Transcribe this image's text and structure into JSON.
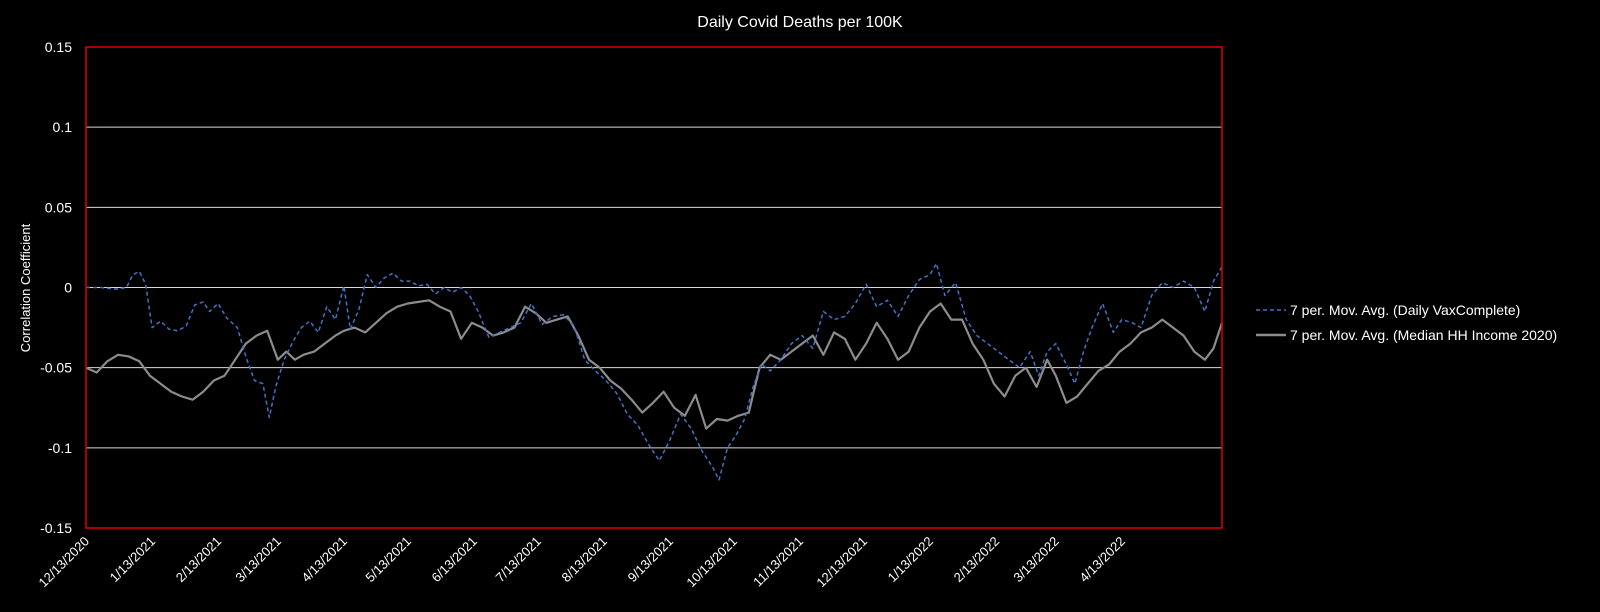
{
  "colors": {
    "background": "#000000",
    "plot_border": "#e00000",
    "gridline": "#d9d9d9",
    "text": "#ffffff",
    "series_vax": "#4472c4",
    "series_income": "#8c8c8c"
  },
  "chart_data": {
    "type": "line",
    "title": "Daily Covid Deaths per 100K",
    "xlabel": "",
    "ylabel": "Correlation Coefficient",
    "ylim": [
      -0.15,
      0.15
    ],
    "y_ticks": [
      {
        "value": 0.15,
        "label": "0.15"
      },
      {
        "value": 0.1,
        "label": "0.1"
      },
      {
        "value": 0.05,
        "label": "0.05"
      },
      {
        "value": 0,
        "label": "0"
      },
      {
        "value": -0.05,
        "label": "-0.05"
      },
      {
        "value": -0.1,
        "label": "-0.1"
      },
      {
        "value": -0.15,
        "label": "-0.15"
      }
    ],
    "xlim": [
      "12/13/2020",
      "5/30/2022"
    ],
    "x_ticks": [
      "12/13/2020",
      "1/13/2021",
      "2/13/2021",
      "3/13/2021",
      "4/13/2021",
      "5/13/2021",
      "6/13/2021",
      "7/13/2021",
      "8/13/2021",
      "9/13/2021",
      "10/13/2021",
      "11/13/2021",
      "12/13/2021",
      "1/13/2022",
      "2/13/2022",
      "3/13/2022",
      "4/13/2022"
    ],
    "grid": true,
    "legend_position": "right",
    "series": [
      {
        "name": "7 per. Mov. Avg. (Daily VaxComplete)",
        "style": "dashed",
        "points": [
          [
            "12/13/2020",
            0.0
          ],
          [
            "12/20/2020",
            0.0
          ],
          [
            "12/27/2020",
            -0.001
          ],
          [
            "1/1/2021",
            0.0
          ],
          [
            "1/4/2021",
            0.008
          ],
          [
            "1/7/2021",
            0.01
          ],
          [
            "1/10/2021",
            0.002
          ],
          [
            "1/13/2021",
            -0.025
          ],
          [
            "1/17/2021",
            -0.021
          ],
          [
            "1/21/2021",
            -0.026
          ],
          [
            "1/25/2021",
            -0.027
          ],
          [
            "1/29/2021",
            -0.024
          ],
          [
            "2/2/2021",
            -0.011
          ],
          [
            "2/6/2021",
            -0.009
          ],
          [
            "2/9/2021",
            -0.015
          ],
          [
            "2/13/2021",
            -0.01
          ],
          [
            "2/17/2021",
            -0.019
          ],
          [
            "2/22/2021",
            -0.025
          ],
          [
            "2/26/2021",
            -0.043
          ],
          [
            "3/2/2021",
            -0.058
          ],
          [
            "3/6/2021",
            -0.06
          ],
          [
            "3/9/2021",
            -0.081
          ],
          [
            "3/12/2021",
            -0.062
          ],
          [
            "3/16/2021",
            -0.045
          ],
          [
            "3/20/2021",
            -0.034
          ],
          [
            "3/24/2021",
            -0.025
          ],
          [
            "3/28/2021",
            -0.021
          ],
          [
            "4/1/2021",
            -0.028
          ],
          [
            "4/5/2021",
            -0.012
          ],
          [
            "4/9/2021",
            -0.02
          ],
          [
            "4/13/2021",
            0.001
          ],
          [
            "4/16/2021",
            -0.026
          ],
          [
            "4/20/2021",
            -0.014
          ],
          [
            "4/24/2021",
            0.008
          ],
          [
            "4/28/2021",
            0.0
          ],
          [
            "5/2/2021",
            0.006
          ],
          [
            "5/6/2021",
            0.009
          ],
          [
            "5/10/2021",
            0.004
          ],
          [
            "5/14/2021",
            0.004
          ],
          [
            "5/18/2021",
            0.001
          ],
          [
            "5/22/2021",
            0.002
          ],
          [
            "5/26/2021",
            -0.004
          ],
          [
            "5/30/2021",
            0.0
          ],
          [
            "6/3/2021",
            -0.003
          ],
          [
            "6/7/2021",
            0.0
          ],
          [
            "6/11/2021",
            -0.005
          ],
          [
            "6/15/2021",
            -0.015
          ],
          [
            "6/20/2021",
            -0.031
          ],
          [
            "6/25/2021",
            -0.028
          ],
          [
            "6/30/2021",
            -0.025
          ],
          [
            "7/5/2021",
            -0.022
          ],
          [
            "7/10/2021",
            -0.01
          ],
          [
            "7/15/2021",
            -0.023
          ],
          [
            "7/20/2021",
            -0.018
          ],
          [
            "7/25/2021",
            -0.017
          ],
          [
            "7/30/2021",
            -0.024
          ],
          [
            "8/4/2021",
            -0.045
          ],
          [
            "8/9/2021",
            -0.052
          ],
          [
            "8/14/2021",
            -0.058
          ],
          [
            "8/19/2021",
            -0.066
          ],
          [
            "8/24/2021",
            -0.079
          ],
          [
            "8/29/2021",
            -0.086
          ],
          [
            "9/3/2021",
            -0.098
          ],
          [
            "9/8/2021",
            -0.108
          ],
          [
            "9/13/2021",
            -0.095
          ],
          [
            "9/18/2021",
            -0.079
          ],
          [
            "9/23/2021",
            -0.088
          ],
          [
            "9/28/2021",
            -0.102
          ],
          [
            "10/3/2021",
            -0.112
          ],
          [
            "10/6/2021",
            -0.12
          ],
          [
            "10/10/2021",
            -0.1
          ],
          [
            "10/14/2021",
            -0.092
          ],
          [
            "10/18/2021",
            -0.082
          ],
          [
            "10/22/2021",
            -0.062
          ],
          [
            "10/26/2021",
            -0.048
          ],
          [
            "10/30/2021",
            -0.052
          ],
          [
            "11/4/2021",
            -0.045
          ],
          [
            "11/9/2021",
            -0.035
          ],
          [
            "11/14/2021",
            -0.03
          ],
          [
            "11/19/2021",
            -0.038
          ],
          [
            "11/24/2021",
            -0.015
          ],
          [
            "11/29/2021",
            -0.02
          ],
          [
            "12/4/2021",
            -0.018
          ],
          [
            "12/9/2021",
            -0.01
          ],
          [
            "12/14/2021",
            0.002
          ],
          [
            "12/19/2021",
            -0.012
          ],
          [
            "12/24/2021",
            -0.008
          ],
          [
            "12/29/2021",
            -0.018
          ],
          [
            "1/3/2022",
            -0.005
          ],
          [
            "1/8/2022",
            0.005
          ],
          [
            "1/13/2022",
            0.008
          ],
          [
            "1/16/2022",
            0.015
          ],
          [
            "1/20/2022",
            -0.005
          ],
          [
            "1/25/2022",
            0.003
          ],
          [
            "1/30/2022",
            -0.02
          ],
          [
            "2/4/2022",
            -0.03
          ],
          [
            "2/9/2022",
            -0.035
          ],
          [
            "2/14/2022",
            -0.04
          ],
          [
            "2/19/2022",
            -0.045
          ],
          [
            "2/24/2022",
            -0.05
          ],
          [
            "3/1/2022",
            -0.04
          ],
          [
            "3/5/2022",
            -0.055
          ],
          [
            "3/9/2022",
            -0.04
          ],
          [
            "3/13/2022",
            -0.035
          ],
          [
            "3/18/2022",
            -0.048
          ],
          [
            "3/22/2022",
            -0.06
          ],
          [
            "3/26/2022",
            -0.04
          ],
          [
            "3/30/2022",
            -0.025
          ],
          [
            "4/4/2022",
            -0.01
          ],
          [
            "4/9/2022",
            -0.028
          ],
          [
            "4/13/2022",
            -0.02
          ],
          [
            "4/18/2022",
            -0.022
          ],
          [
            "4/22/2022",
            -0.025
          ],
          [
            "4/27/2022",
            -0.005
          ],
          [
            "5/2/2022",
            0.003
          ],
          [
            "5/7/2022",
            0.0
          ],
          [
            "5/12/2022",
            0.004
          ],
          [
            "5/17/2022",
            0.0
          ],
          [
            "5/22/2022",
            -0.015
          ],
          [
            "5/26/2022",
            0.004
          ],
          [
            "5/30/2022",
            0.013
          ]
        ]
      },
      {
        "name": "7 per. Mov. Avg. (Median HH Income 2020)",
        "style": "solid",
        "points": [
          [
            "12/13/2020",
            -0.05
          ],
          [
            "12/18/2020",
            -0.053
          ],
          [
            "12/23/2020",
            -0.046
          ],
          [
            "12/28/2020",
            -0.042
          ],
          [
            "1/2/2021",
            -0.043
          ],
          [
            "1/7/2021",
            -0.046
          ],
          [
            "1/12/2021",
            -0.055
          ],
          [
            "1/17/2021",
            -0.06
          ],
          [
            "1/22/2021",
            -0.065
          ],
          [
            "1/27/2021",
            -0.068
          ],
          [
            "2/1/2021",
            -0.07
          ],
          [
            "2/6/2021",
            -0.065
          ],
          [
            "2/11/2021",
            -0.058
          ],
          [
            "2/16/2021",
            -0.055
          ],
          [
            "2/21/2021",
            -0.045
          ],
          [
            "2/26/2021",
            -0.035
          ],
          [
            "3/3/2021",
            -0.03
          ],
          [
            "3/8/2021",
            -0.027
          ],
          [
            "3/13/2021",
            -0.045
          ],
          [
            "3/17/2021",
            -0.04
          ],
          [
            "3/21/2021",
            -0.045
          ],
          [
            "3/25/2021",
            -0.042
          ],
          [
            "3/30/2021",
            -0.04
          ],
          [
            "4/4/2021",
            -0.035
          ],
          [
            "4/9/2021",
            -0.03
          ],
          [
            "4/13/2021",
            -0.027
          ],
          [
            "4/18/2021",
            -0.025
          ],
          [
            "4/23/2021",
            -0.028
          ],
          [
            "4/28/2021",
            -0.022
          ],
          [
            "5/3/2021",
            -0.016
          ],
          [
            "5/8/2021",
            -0.012
          ],
          [
            "5/13/2021",
            -0.01
          ],
          [
            "5/18/2021",
            -0.009
          ],
          [
            "5/23/2021",
            -0.008
          ],
          [
            "5/28/2021",
            -0.012
          ],
          [
            "6/2/2021",
            -0.015
          ],
          [
            "6/7/2021",
            -0.032
          ],
          [
            "6/12/2021",
            -0.022
          ],
          [
            "6/17/2021",
            -0.025
          ],
          [
            "6/22/2021",
            -0.03
          ],
          [
            "6/27/2021",
            -0.028
          ],
          [
            "7/2/2021",
            -0.025
          ],
          [
            "7/7/2021",
            -0.012
          ],
          [
            "7/12/2021",
            -0.016
          ],
          [
            "7/17/2021",
            -0.022
          ],
          [
            "7/22/2021",
            -0.02
          ],
          [
            "7/27/2021",
            -0.018
          ],
          [
            "8/1/2021",
            -0.03
          ],
          [
            "8/6/2021",
            -0.045
          ],
          [
            "8/11/2021",
            -0.05
          ],
          [
            "8/16/2021",
            -0.058
          ],
          [
            "8/21/2021",
            -0.063
          ],
          [
            "8/26/2021",
            -0.07
          ],
          [
            "8/31/2021",
            -0.078
          ],
          [
            "9/5/2021",
            -0.072
          ],
          [
            "9/10/2021",
            -0.065
          ],
          [
            "9/15/2021",
            -0.075
          ],
          [
            "9/20/2021",
            -0.08
          ],
          [
            "9/25/2021",
            -0.067
          ],
          [
            "9/30/2021",
            -0.088
          ],
          [
            "10/5/2021",
            -0.082
          ],
          [
            "10/10/2021",
            -0.083
          ],
          [
            "10/15/2021",
            -0.08
          ],
          [
            "10/20/2021",
            -0.078
          ],
          [
            "10/25/2021",
            -0.05
          ],
          [
            "10/30/2021",
            -0.042
          ],
          [
            "11/4/2021",
            -0.045
          ],
          [
            "11/9/2021",
            -0.04
          ],
          [
            "11/14/2021",
            -0.035
          ],
          [
            "11/19/2021",
            -0.03
          ],
          [
            "11/24/2021",
            -0.042
          ],
          [
            "11/29/2021",
            -0.028
          ],
          [
            "12/4/2021",
            -0.032
          ],
          [
            "12/9/2021",
            -0.045
          ],
          [
            "12/14/2021",
            -0.035
          ],
          [
            "12/19/2021",
            -0.022
          ],
          [
            "12/24/2021",
            -0.032
          ],
          [
            "12/29/2021",
            -0.045
          ],
          [
            "1/3/2022",
            -0.04
          ],
          [
            "1/8/2022",
            -0.025
          ],
          [
            "1/13/2022",
            -0.015
          ],
          [
            "1/18/2022",
            -0.01
          ],
          [
            "1/23/2022",
            -0.02
          ],
          [
            "1/28/2022",
            -0.02
          ],
          [
            "2/2/2022",
            -0.035
          ],
          [
            "2/7/2022",
            -0.045
          ],
          [
            "2/12/2022",
            -0.06
          ],
          [
            "2/17/2022",
            -0.068
          ],
          [
            "2/22/2022",
            -0.055
          ],
          [
            "2/27/2022",
            -0.05
          ],
          [
            "3/4/2022",
            -0.062
          ],
          [
            "3/9/2022",
            -0.045
          ],
          [
            "3/13/2022",
            -0.055
          ],
          [
            "3/18/2022",
            -0.072
          ],
          [
            "3/23/2022",
            -0.068
          ],
          [
            "3/28/2022",
            -0.06
          ],
          [
            "4/2/2022",
            -0.052
          ],
          [
            "4/7/2022",
            -0.048
          ],
          [
            "4/12/2022",
            -0.04
          ],
          [
            "4/17/2022",
            -0.035
          ],
          [
            "4/22/2022",
            -0.028
          ],
          [
            "4/27/2022",
            -0.025
          ],
          [
            "5/2/2022",
            -0.02
          ],
          [
            "5/7/2022",
            -0.025
          ],
          [
            "5/12/2022",
            -0.03
          ],
          [
            "5/17/2022",
            -0.04
          ],
          [
            "5/22/2022",
            -0.045
          ],
          [
            "5/26/2022",
            -0.038
          ],
          [
            "5/30/2022",
            -0.022
          ]
        ]
      }
    ]
  }
}
